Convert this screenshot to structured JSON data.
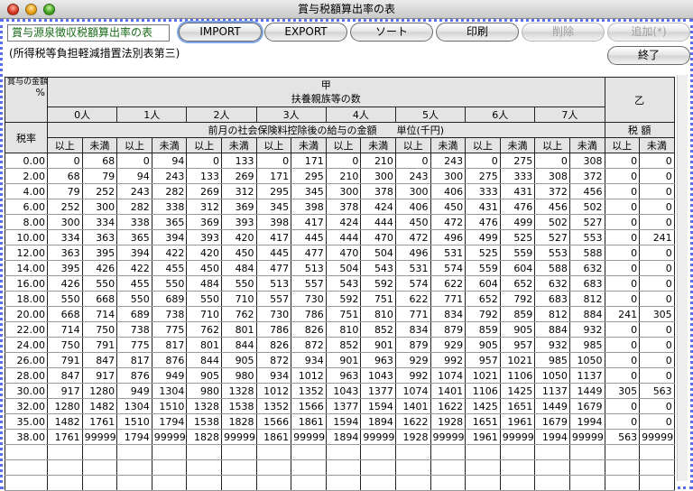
{
  "window": {
    "title": "賞与税額算出率の表"
  },
  "form": {
    "name_value": "賞与源泉徴収税額算出率の表",
    "subtitle": "(所得税等負担軽減措置法別表第三)"
  },
  "toolbar": {
    "import": "IMPORT",
    "export": "EXPORT",
    "sort": "ソート",
    "print": "印刷",
    "delete": "削除",
    "add": "追加(*)",
    "quit": "終了"
  },
  "table": {
    "corner_label": "賞与の金額に乗ずべき率",
    "percent": "%",
    "kou": "甲",
    "dependents": "扶養親族等の数",
    "otsu": "乙",
    "persons": [
      "0人",
      "1人",
      "2人",
      "3人",
      "4人",
      "5人",
      "6人",
      "7人"
    ],
    "salary_header": "前月の社会保険料控除後の給与の金額　　単位(千円)",
    "tax_header": "税 額",
    "rate_header": "税率",
    "min_label": "以上",
    "max_label": "未満",
    "rows": [
      [
        "0.00",
        "0",
        "68",
        "0",
        "94",
        "0",
        "133",
        "0",
        "171",
        "0",
        "210",
        "0",
        "243",
        "0",
        "275",
        "0",
        "308",
        "0",
        "0"
      ],
      [
        "2.00",
        "68",
        "79",
        "94",
        "243",
        "133",
        "269",
        "171",
        "295",
        "210",
        "300",
        "243",
        "300",
        "275",
        "333",
        "308",
        "372",
        "0",
        "0"
      ],
      [
        "4.00",
        "79",
        "252",
        "243",
        "282",
        "269",
        "312",
        "295",
        "345",
        "300",
        "378",
        "300",
        "406",
        "333",
        "431",
        "372",
        "456",
        "0",
        "0"
      ],
      [
        "6.00",
        "252",
        "300",
        "282",
        "338",
        "312",
        "369",
        "345",
        "398",
        "378",
        "424",
        "406",
        "450",
        "431",
        "476",
        "456",
        "502",
        "0",
        "0"
      ],
      [
        "8.00",
        "300",
        "334",
        "338",
        "365",
        "369",
        "393",
        "398",
        "417",
        "424",
        "444",
        "450",
        "472",
        "476",
        "499",
        "502",
        "527",
        "0",
        "0"
      ],
      [
        "10.00",
        "334",
        "363",
        "365",
        "394",
        "393",
        "420",
        "417",
        "445",
        "444",
        "470",
        "472",
        "496",
        "499",
        "525",
        "527",
        "553",
        "0",
        "241"
      ],
      [
        "12.00",
        "363",
        "395",
        "394",
        "422",
        "420",
        "450",
        "445",
        "477",
        "470",
        "504",
        "496",
        "531",
        "525",
        "559",
        "553",
        "588",
        "0",
        "0"
      ],
      [
        "14.00",
        "395",
        "426",
        "422",
        "455",
        "450",
        "484",
        "477",
        "513",
        "504",
        "543",
        "531",
        "574",
        "559",
        "604",
        "588",
        "632",
        "0",
        "0"
      ],
      [
        "16.00",
        "426",
        "550",
        "455",
        "550",
        "484",
        "550",
        "513",
        "557",
        "543",
        "592",
        "574",
        "622",
        "604",
        "652",
        "632",
        "683",
        "0",
        "0"
      ],
      [
        "18.00",
        "550",
        "668",
        "550",
        "689",
        "550",
        "710",
        "557",
        "730",
        "592",
        "751",
        "622",
        "771",
        "652",
        "792",
        "683",
        "812",
        "0",
        "0"
      ],
      [
        "20.00",
        "668",
        "714",
        "689",
        "738",
        "710",
        "762",
        "730",
        "786",
        "751",
        "810",
        "771",
        "834",
        "792",
        "859",
        "812",
        "884",
        "241",
        "305"
      ],
      [
        "22.00",
        "714",
        "750",
        "738",
        "775",
        "762",
        "801",
        "786",
        "826",
        "810",
        "852",
        "834",
        "879",
        "859",
        "905",
        "884",
        "932",
        "0",
        "0"
      ],
      [
        "24.00",
        "750",
        "791",
        "775",
        "817",
        "801",
        "844",
        "826",
        "872",
        "852",
        "901",
        "879",
        "929",
        "905",
        "957",
        "932",
        "985",
        "0",
        "0"
      ],
      [
        "26.00",
        "791",
        "847",
        "817",
        "876",
        "844",
        "905",
        "872",
        "934",
        "901",
        "963",
        "929",
        "992",
        "957",
        "1021",
        "985",
        "1050",
        "0",
        "0"
      ],
      [
        "28.00",
        "847",
        "917",
        "876",
        "949",
        "905",
        "980",
        "934",
        "1012",
        "963",
        "1043",
        "992",
        "1074",
        "1021",
        "1106",
        "1050",
        "1137",
        "0",
        "0"
      ],
      [
        "30.00",
        "917",
        "1280",
        "949",
        "1304",
        "980",
        "1328",
        "1012",
        "1352",
        "1043",
        "1377",
        "1074",
        "1401",
        "1106",
        "1425",
        "1137",
        "1449",
        "305",
        "563"
      ],
      [
        "32.00",
        "1280",
        "1482",
        "1304",
        "1510",
        "1328",
        "1538",
        "1352",
        "1566",
        "1377",
        "1594",
        "1401",
        "1622",
        "1425",
        "1651",
        "1449",
        "1679",
        "0",
        "0"
      ],
      [
        "35.00",
        "1482",
        "1761",
        "1510",
        "1794",
        "1538",
        "1828",
        "1566",
        "1861",
        "1594",
        "1894",
        "1622",
        "1928",
        "1651",
        "1961",
        "1679",
        "1994",
        "0",
        "0"
      ],
      [
        "38.00",
        "1761",
        "99999",
        "1794",
        "99999",
        "1828",
        "99999",
        "1861",
        "99999",
        "1894",
        "99999",
        "1928",
        "99999",
        "1961",
        "99999",
        "1994",
        "99999",
        "563",
        "99999"
      ]
    ]
  }
}
